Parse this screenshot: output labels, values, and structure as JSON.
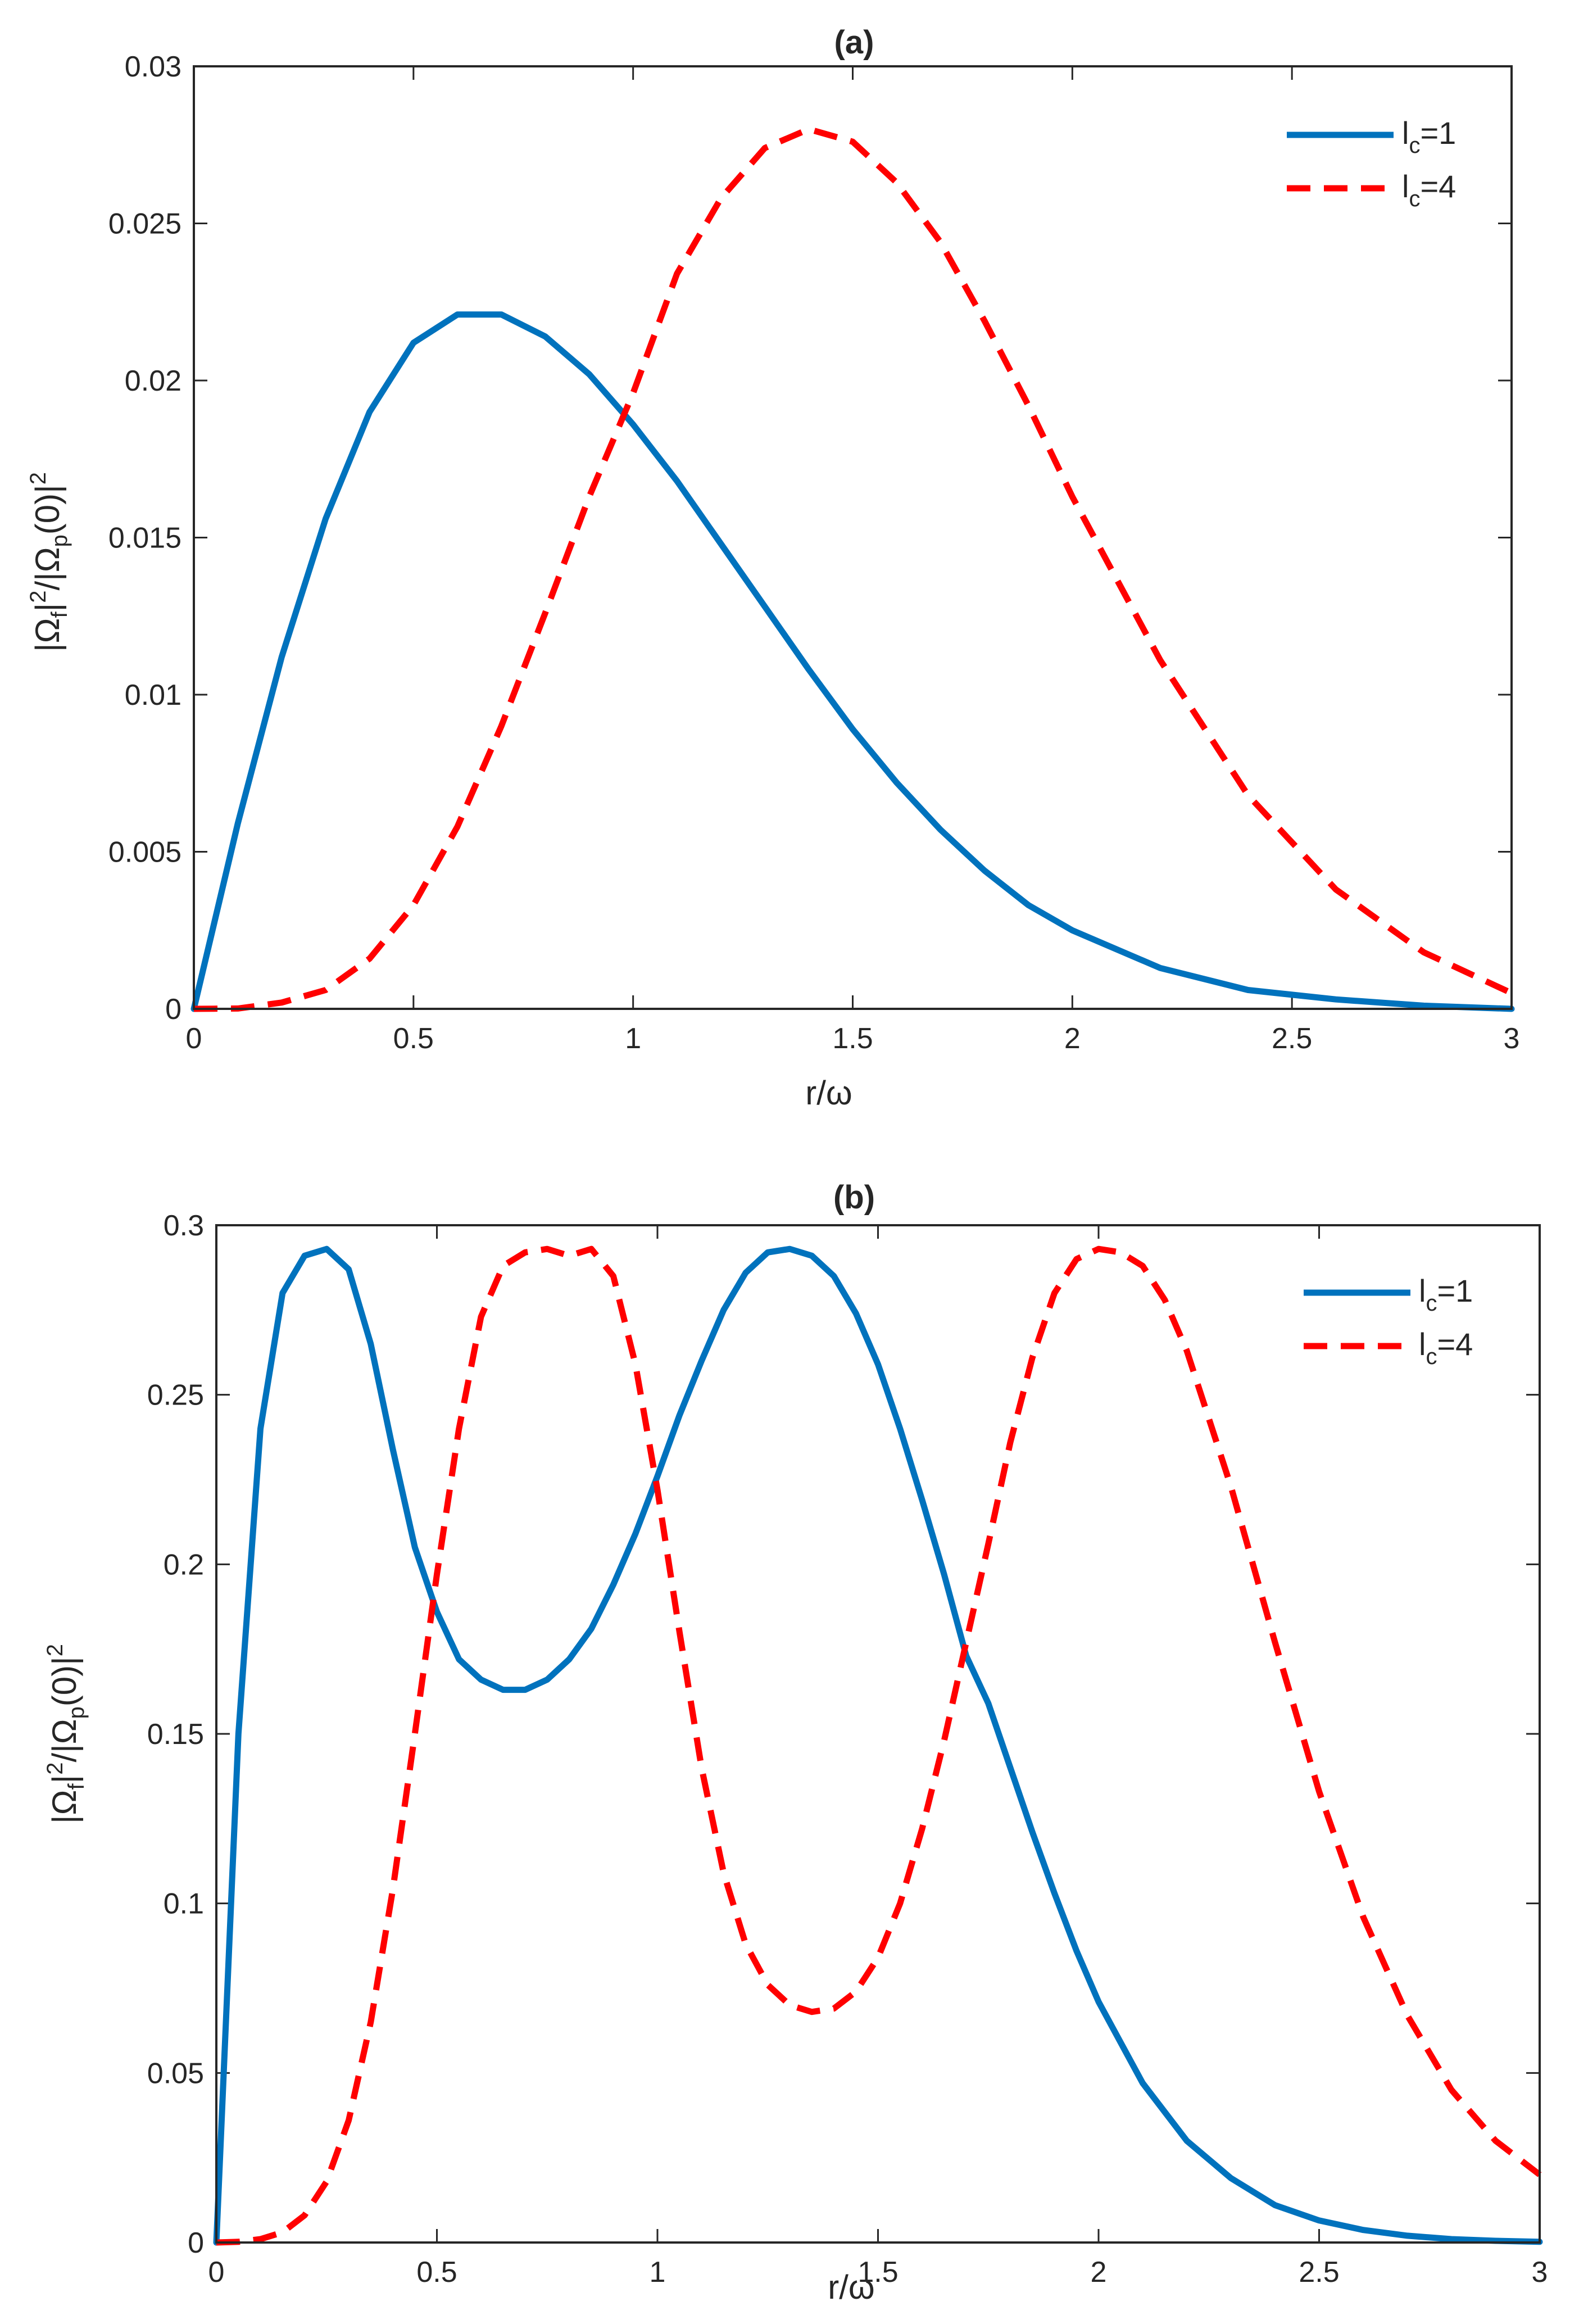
{
  "chart_data": [
    {
      "type": "line",
      "title": "(a)",
      "xlabel": "r/ω",
      "ylabel": {
        "base": "|Ω",
        "sub1": "f",
        "mid": "|",
        "sup1": "2",
        "mid2": "/|Ω",
        "sub2": "p",
        "end": "(0)|",
        "sup2": "2"
      },
      "xlim": [
        0,
        3
      ],
      "ylim": [
        0,
        0.03
      ],
      "xticks": [
        "0",
        "0.5",
        "1",
        "1.5",
        "2",
        "2.5",
        "3"
      ],
      "yticks": [
        "0",
        "0.005",
        "0.01",
        "0.015",
        "0.02",
        "0.025",
        "0.03"
      ],
      "legend_position": "top-right",
      "series": [
        {
          "name": "l_c=1",
          "label_main": "l",
          "label_sub": "c",
          "label_rest": "=1",
          "style": "solid",
          "color": "#0072BD",
          "x": [
            0,
            0.1,
            0.2,
            0.3,
            0.4,
            0.5,
            0.6,
            0.7,
            0.8,
            0.9,
            1.0,
            1.1,
            1.2,
            1.3,
            1.4,
            1.5,
            1.6,
            1.7,
            1.8,
            1.9,
            2.0,
            2.2,
            2.4,
            2.6,
            2.8,
            3.0
          ],
          "y": [
            0,
            0.0059,
            0.0112,
            0.0156,
            0.019,
            0.0212,
            0.0221,
            0.0221,
            0.0214,
            0.0202,
            0.0186,
            0.0168,
            0.0148,
            0.0128,
            0.0108,
            0.0089,
            0.0072,
            0.0057,
            0.0044,
            0.0033,
            0.0025,
            0.0013,
            0.0006,
            0.0003,
            0.0001,
            0.0
          ]
        },
        {
          "name": "l_c=4",
          "label_main": "l",
          "label_sub": "c",
          "label_rest": "=4",
          "style": "dashed",
          "color": "#FF0000",
          "x": [
            0,
            0.1,
            0.2,
            0.3,
            0.4,
            0.5,
            0.6,
            0.7,
            0.8,
            0.9,
            1.0,
            1.1,
            1.2,
            1.3,
            1.4,
            1.5,
            1.6,
            1.7,
            1.8,
            1.9,
            2.0,
            2.2,
            2.4,
            2.6,
            2.8,
            3.0
          ],
          "y": [
            0,
            1e-05,
            0.0002,
            0.0006,
            0.0016,
            0.0033,
            0.0058,
            0.009,
            0.0126,
            0.0163,
            0.0196,
            0.0234,
            0.0258,
            0.0274,
            0.028,
            0.0276,
            0.0263,
            0.0244,
            0.0219,
            0.0192,
            0.0163,
            0.0111,
            0.0068,
            0.0038,
            0.0018,
            0.0005
          ]
        }
      ]
    },
    {
      "type": "line",
      "title": "(b)",
      "xlabel": "r/ω",
      "ylabel": {
        "base": "|Ω",
        "sub1": "f",
        "mid": "|",
        "sup1": "2",
        "mid2": "/|Ω",
        "sub2": "p",
        "end": "(0)|",
        "sup2": "2"
      },
      "xlim": [
        0,
        3
      ],
      "ylim": [
        0,
        0.3
      ],
      "xticks": [
        "0",
        "0.5",
        "1",
        "1.5",
        "2",
        "2.5",
        "3"
      ],
      "yticks": [
        "0",
        "0.05",
        "0.1",
        "0.15",
        "0.2",
        "0.25",
        "0.3"
      ],
      "legend_position": "top-right",
      "series": [
        {
          "name": "l_c=1",
          "label_main": "l",
          "label_sub": "c",
          "label_rest": "=1",
          "style": "solid",
          "color": "#0072BD",
          "x": [
            0,
            0.05,
            0.1,
            0.15,
            0.2,
            0.25,
            0.3,
            0.35,
            0.4,
            0.45,
            0.5,
            0.55,
            0.6,
            0.65,
            0.7,
            0.75,
            0.8,
            0.85,
            0.9,
            0.95,
            1.0,
            1.05,
            1.1,
            1.15,
            1.2,
            1.25,
            1.3,
            1.35,
            1.4,
            1.45,
            1.5,
            1.55,
            1.6,
            1.65,
            1.7,
            1.75,
            1.8,
            1.85,
            1.9,
            1.95,
            2.0,
            2.1,
            2.2,
            2.3,
            2.4,
            2.5,
            2.6,
            2.7,
            2.8,
            2.9,
            3.0
          ],
          "y": [
            0,
            0.15,
            0.24,
            0.28,
            0.291,
            0.293,
            0.287,
            0.265,
            0.234,
            0.205,
            0.186,
            0.172,
            0.166,
            0.163,
            0.163,
            0.166,
            0.172,
            0.181,
            0.194,
            0.209,
            0.226,
            0.244,
            0.26,
            0.275,
            0.286,
            0.292,
            0.293,
            0.291,
            0.285,
            0.274,
            0.259,
            0.24,
            0.219,
            0.197,
            0.173,
            0.159,
            0.14,
            0.121,
            0.103,
            0.086,
            0.071,
            0.047,
            0.03,
            0.019,
            0.011,
            0.0065,
            0.0037,
            0.002,
            0.001,
            0.0005,
            0.0002
          ]
        },
        {
          "name": "l_c=4",
          "label_main": "l",
          "label_sub": "c",
          "label_rest": "=4",
          "style": "dashed",
          "color": "#FF0000",
          "x": [
            0,
            0.05,
            0.1,
            0.15,
            0.2,
            0.25,
            0.3,
            0.35,
            0.4,
            0.45,
            0.5,
            0.55,
            0.6,
            0.65,
            0.7,
            0.75,
            0.8,
            0.85,
            0.9,
            0.95,
            1.0,
            1.05,
            1.1,
            1.15,
            1.2,
            1.25,
            1.3,
            1.35,
            1.4,
            1.45,
            1.5,
            1.55,
            1.6,
            1.65,
            1.7,
            1.75,
            1.8,
            1.85,
            1.9,
            1.95,
            2.0,
            2.05,
            2.1,
            2.15,
            2.2,
            2.3,
            2.4,
            2.5,
            2.6,
            2.7,
            2.8,
            2.9,
            3.0
          ],
          "y": [
            0,
            0.0002,
            0.001,
            0.003,
            0.008,
            0.018,
            0.036,
            0.065,
            0.104,
            0.15,
            0.197,
            0.24,
            0.273,
            0.288,
            0.292,
            0.293,
            0.291,
            0.293,
            0.285,
            0.259,
            0.222,
            0.18,
            0.14,
            0.109,
            0.088,
            0.076,
            0.07,
            0.068,
            0.069,
            0.074,
            0.084,
            0.1,
            0.122,
            0.148,
            0.177,
            0.206,
            0.236,
            0.261,
            0.28,
            0.29,
            0.293,
            0.292,
            0.288,
            0.278,
            0.263,
            0.223,
            0.177,
            0.133,
            0.096,
            0.067,
            0.045,
            0.03,
            0.02
          ]
        }
      ]
    }
  ]
}
